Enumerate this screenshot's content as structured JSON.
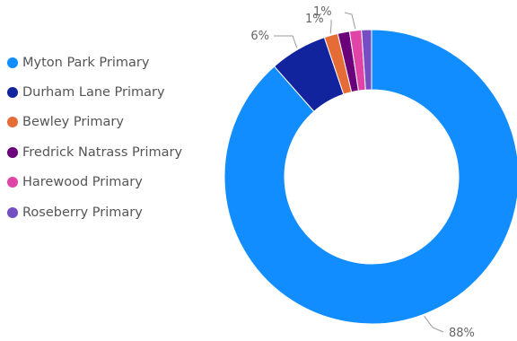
{
  "chart_data": {
    "type": "pie",
    "title": "",
    "donut": true,
    "legend_position": "left",
    "categories": [
      "Myton Park Primary",
      "Durham Lane Primary",
      "Bewley Primary",
      "Fredrick Natrass Primary",
      "Harewood Primary",
      "Roseberry Primary"
    ],
    "values": [
      88.5,
      6.3,
      1.5,
      1.3,
      1.3,
      1.1
    ],
    "colors": [
      "#118dff",
      "#12239e",
      "#e66c37",
      "#6b007b",
      "#e044a7",
      "#744ec2"
    ],
    "data_labels": [
      "88%",
      "6%",
      "1%",
      "",
      "1%",
      ""
    ]
  }
}
